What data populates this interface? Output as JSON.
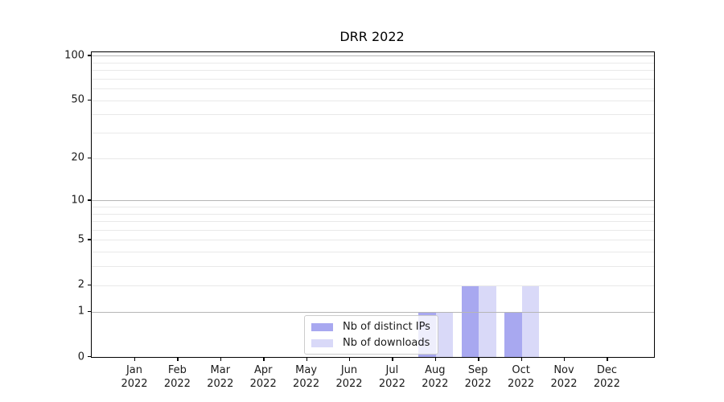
{
  "chart_data": {
    "type": "bar",
    "title": "DRR 2022",
    "categories": [
      {
        "month": "Jan",
        "year": "2022"
      },
      {
        "month": "Feb",
        "year": "2022"
      },
      {
        "month": "Mar",
        "year": "2022"
      },
      {
        "month": "Apr",
        "year": "2022"
      },
      {
        "month": "May",
        "year": "2022"
      },
      {
        "month": "Jun",
        "year": "2022"
      },
      {
        "month": "Jul",
        "year": "2022"
      },
      {
        "month": "Aug",
        "year": "2022"
      },
      {
        "month": "Sep",
        "year": "2022"
      },
      {
        "month": "Oct",
        "year": "2022"
      },
      {
        "month": "Nov",
        "year": "2022"
      },
      {
        "month": "Dec",
        "year": "2022"
      }
    ],
    "series": [
      {
        "name": "Nb of distinct IPs",
        "color": "#a8a8f0",
        "values": [
          0,
          0,
          0,
          0,
          0,
          0,
          0,
          1,
          2,
          1,
          0,
          0
        ]
      },
      {
        "name": "Nb of downloads",
        "color": "#d9d9f8",
        "values": [
          0,
          0,
          0,
          0,
          0,
          0,
          0,
          1,
          2,
          2,
          0,
          0
        ]
      }
    ],
    "xlabel": "",
    "ylabel": "",
    "y_scale": "log1p",
    "ylim": [
      0,
      107
    ],
    "y_tick_values": [
      0,
      1,
      2,
      5,
      10,
      20,
      50,
      100
    ],
    "y_major_ticks": [
      1,
      10,
      100
    ],
    "y_minor_gridlines": [
      3,
      4,
      6,
      7,
      8,
      9,
      30,
      40,
      60,
      70,
      80,
      90
    ],
    "grid": true,
    "legend_position": "lower center",
    "colors": {
      "grid_major": "#b6b6b6",
      "grid_minor": "#e9e9e9",
      "axis": "#000000",
      "text": "#1a1a1a",
      "legend_border": "#cccccc"
    }
  }
}
